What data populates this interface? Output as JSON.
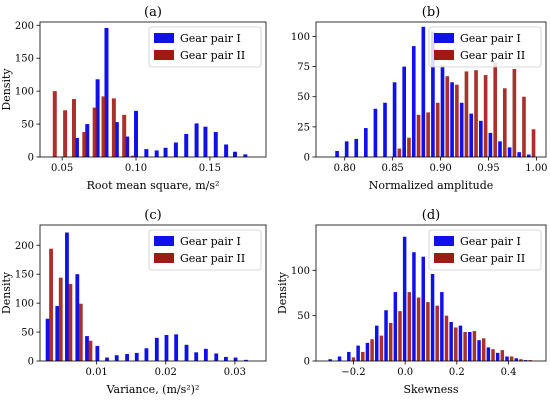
{
  "colors": {
    "series_1": "#1010e8",
    "series_2": "#a01a14",
    "legend_border": "#cccccc"
  },
  "chart_data": [
    {
      "type": "bar",
      "title": "(a)",
      "xlabel": "Root mean square, m/s²",
      "ylabel": "Density",
      "xlim": [
        0.035,
        0.188
      ],
      "ylim": [
        0,
        205
      ],
      "xticks": [
        {
          "value": 0.05,
          "label": "0.05"
        },
        {
          "value": 0.1,
          "label": "0.10"
        },
        {
          "value": 0.15,
          "label": "0.15"
        }
      ],
      "yticks": [
        {
          "value": 0,
          "label": "0"
        },
        {
          "value": 50,
          "label": "50"
        },
        {
          "value": 100,
          "label": "100"
        },
        {
          "value": 150,
          "label": "150"
        },
        {
          "value": 200,
          "label": "200"
        }
      ],
      "bar_width": 0.0027,
      "legend_position": "top-right",
      "series": [
        {
          "name": "Gear pair I",
          "color_key": "series_1",
          "x": [
            0.06,
            0.067,
            0.074,
            0.08,
            0.087,
            0.094,
            0.1,
            0.107,
            0.114,
            0.12,
            0.127,
            0.134,
            0.141,
            0.147,
            0.154,
            0.161,
            0.167,
            0.174
          ],
          "values": [
            29,
            50,
            118,
            196,
            53,
            31,
            70,
            12,
            10,
            14,
            22,
            35,
            51,
            46,
            38,
            19,
            8,
            4
          ]
        },
        {
          "name": "Gear pair II",
          "color_key": "series_2",
          "x": [
            0.045,
            0.052,
            0.058,
            0.065,
            0.072,
            0.078,
            0.085,
            0.092,
            0.098
          ],
          "values": [
            100,
            71,
            88,
            38,
            75,
            92,
            89,
            64,
            2
          ]
        }
      ]
    },
    {
      "type": "bar",
      "title": "(b)",
      "xlabel": "Normalized amplitude",
      "ylabel": "",
      "xlim": [
        0.77,
        1.01
      ],
      "ylim": [
        0,
        112
      ],
      "xticks": [
        {
          "value": 0.8,
          "label": "0.80"
        },
        {
          "value": 0.85,
          "label": "0.85"
        },
        {
          "value": 0.9,
          "label": "0.90"
        },
        {
          "value": 0.95,
          "label": "0.95"
        },
        {
          "value": 1.0,
          "label": "1.00"
        }
      ],
      "yticks": [
        {
          "value": 0,
          "label": "0"
        },
        {
          "value": 25,
          "label": "25"
        },
        {
          "value": 50,
          "label": "50"
        },
        {
          "value": 75,
          "label": "75"
        },
        {
          "value": 100,
          "label": "100"
        }
      ],
      "bar_width": 0.0038,
      "legend_position": "top-right",
      "series": [
        {
          "name": "Gear pair I",
          "color_key": "series_1",
          "x": [
            0.792,
            0.802,
            0.812,
            0.822,
            0.832,
            0.842,
            0.852,
            0.862,
            0.872,
            0.882,
            0.892,
            0.902,
            0.912,
            0.922,
            0.932,
            0.942,
            0.952,
            0.962,
            0.972,
            0.982,
            0.992
          ],
          "values": [
            5,
            13,
            15,
            24,
            40,
            45,
            62,
            75,
            92,
            108,
            104,
            76,
            62,
            45,
            36,
            30,
            20,
            13,
            8,
            4,
            2
          ]
        },
        {
          "name": "Gear pair II",
          "color_key": "series_2",
          "x": [
            0.857,
            0.867,
            0.877,
            0.887,
            0.897,
            0.907,
            0.917,
            0.927,
            0.937,
            0.947,
            0.957,
            0.967,
            0.977,
            0.987,
            0.997
          ],
          "values": [
            7,
            16,
            35,
            37,
            45,
            67,
            60,
            71,
            72,
            68,
            78,
            57,
            73,
            50,
            23
          ]
        }
      ]
    },
    {
      "type": "bar",
      "title": "(c)",
      "xlabel": "Variance, (m/s²)²",
      "ylabel": "Density",
      "xlim": [
        0.0018,
        0.0345
      ],
      "ylim": [
        0,
        235
      ],
      "xticks": [
        {
          "value": 0.01,
          "label": "0.01"
        },
        {
          "value": 0.02,
          "label": "0.02"
        },
        {
          "value": 0.03,
          "label": "0.03"
        }
      ],
      "yticks": [
        {
          "value": 0,
          "label": "0"
        },
        {
          "value": 50,
          "label": "50"
        },
        {
          "value": 100,
          "label": "100"
        },
        {
          "value": 150,
          "label": "150"
        },
        {
          "value": 200,
          "label": "200"
        }
      ],
      "bar_width": 0.00055,
      "legend_position": "top-right",
      "series": [
        {
          "name": "Gear pair I",
          "color_key": "series_1",
          "x": [
            0.0029,
            0.0043,
            0.0057,
            0.0072,
            0.0086,
            0.0101,
            0.0115,
            0.0129,
            0.0144,
            0.0158,
            0.0172,
            0.0187,
            0.0201,
            0.0215,
            0.023,
            0.0244,
            0.0258,
            0.0273,
            0.0287,
            0.0301,
            0.0316
          ],
          "values": [
            73,
            95,
            222,
            150,
            43,
            26,
            6,
            10,
            12,
            14,
            22,
            40,
            45,
            46,
            28,
            15,
            21,
            13,
            7,
            6,
            2
          ]
        },
        {
          "name": "Gear pair II",
          "color_key": "series_2",
          "x": [
            0.0034,
            0.0048,
            0.0062,
            0.0077,
            0.0091
          ],
          "values": [
            194,
            144,
            133,
            99,
            35
          ]
        }
      ]
    },
    {
      "type": "bar",
      "title": "(d)",
      "xlabel": "Skewness",
      "ylabel": "Density",
      "xlim": [
        -0.345,
        0.545
      ],
      "ylim": [
        0,
        150
      ],
      "xticks": [
        {
          "value": -0.2,
          "label": "−0.2"
        },
        {
          "value": 0.0,
          "label": "0.0"
        },
        {
          "value": 0.2,
          "label": "0.2"
        },
        {
          "value": 0.4,
          "label": "0.4"
        }
      ],
      "yticks": [
        {
          "value": 0,
          "label": "0"
        },
        {
          "value": 50,
          "label": "50"
        },
        {
          "value": 100,
          "label": "100"
        }
      ],
      "bar_width": 0.0135,
      "legend_position": "top-right",
      "series": [
        {
          "name": "Gear pair I",
          "color_key": "series_1",
          "x": [
            -0.29,
            -0.254,
            -0.218,
            -0.182,
            -0.146,
            -0.11,
            -0.074,
            -0.038,
            -0.002,
            0.034,
            0.07,
            0.106,
            0.142,
            0.178,
            0.214,
            0.25,
            0.286,
            0.322,
            0.358,
            0.394,
            0.43,
            0.466
          ],
          "values": [
            2,
            5,
            10,
            17,
            20,
            39,
            56,
            76,
            137,
            120,
            115,
            96,
            76,
            43,
            39,
            32,
            23,
            15,
            9,
            5,
            3,
            1
          ]
        },
        {
          "name": "Gear pair II",
          "color_key": "series_2",
          "x": [
            -0.2,
            -0.164,
            -0.128,
            -0.092,
            -0.056,
            -0.02,
            0.016,
            0.052,
            0.088,
            0.124,
            0.16,
            0.196,
            0.232,
            0.268,
            0.304,
            0.34,
            0.376,
            0.412,
            0.448,
            0.484
          ],
          "values": [
            4,
            10,
            24,
            28,
            42,
            55,
            76,
            70,
            65,
            61,
            50,
            37,
            32,
            33,
            25,
            13,
            12,
            5,
            2,
            1
          ]
        }
      ]
    }
  ]
}
